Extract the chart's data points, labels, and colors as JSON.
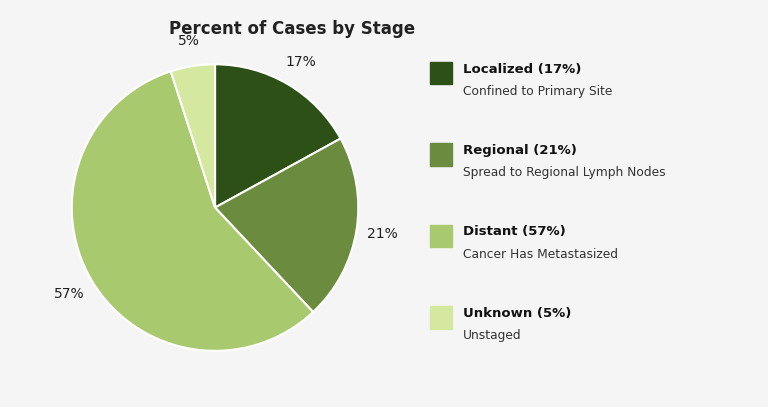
{
  "title": "Percent of Cases by Stage",
  "slices": [
    17,
    21,
    57,
    5
  ],
  "colors": [
    "#2d5016",
    "#6b8c3e",
    "#a8c96e",
    "#d4e8a0"
  ],
  "labels": [
    "17%",
    "21%",
    "57%",
    "5%"
  ],
  "legend_titles": [
    "Localized (17%)",
    "Regional (21%)",
    "Distant (57%)",
    "Unknown (5%)"
  ],
  "legend_subtitles": [
    "Confined to Primary Site",
    "Spread to Regional Lymph Nodes",
    "Cancer Has Metastasized",
    "Unstaged"
  ],
  "startangle": 90,
  "background_color": "#f5f5f5",
  "title_fontsize": 12,
  "label_fontsize": 10
}
